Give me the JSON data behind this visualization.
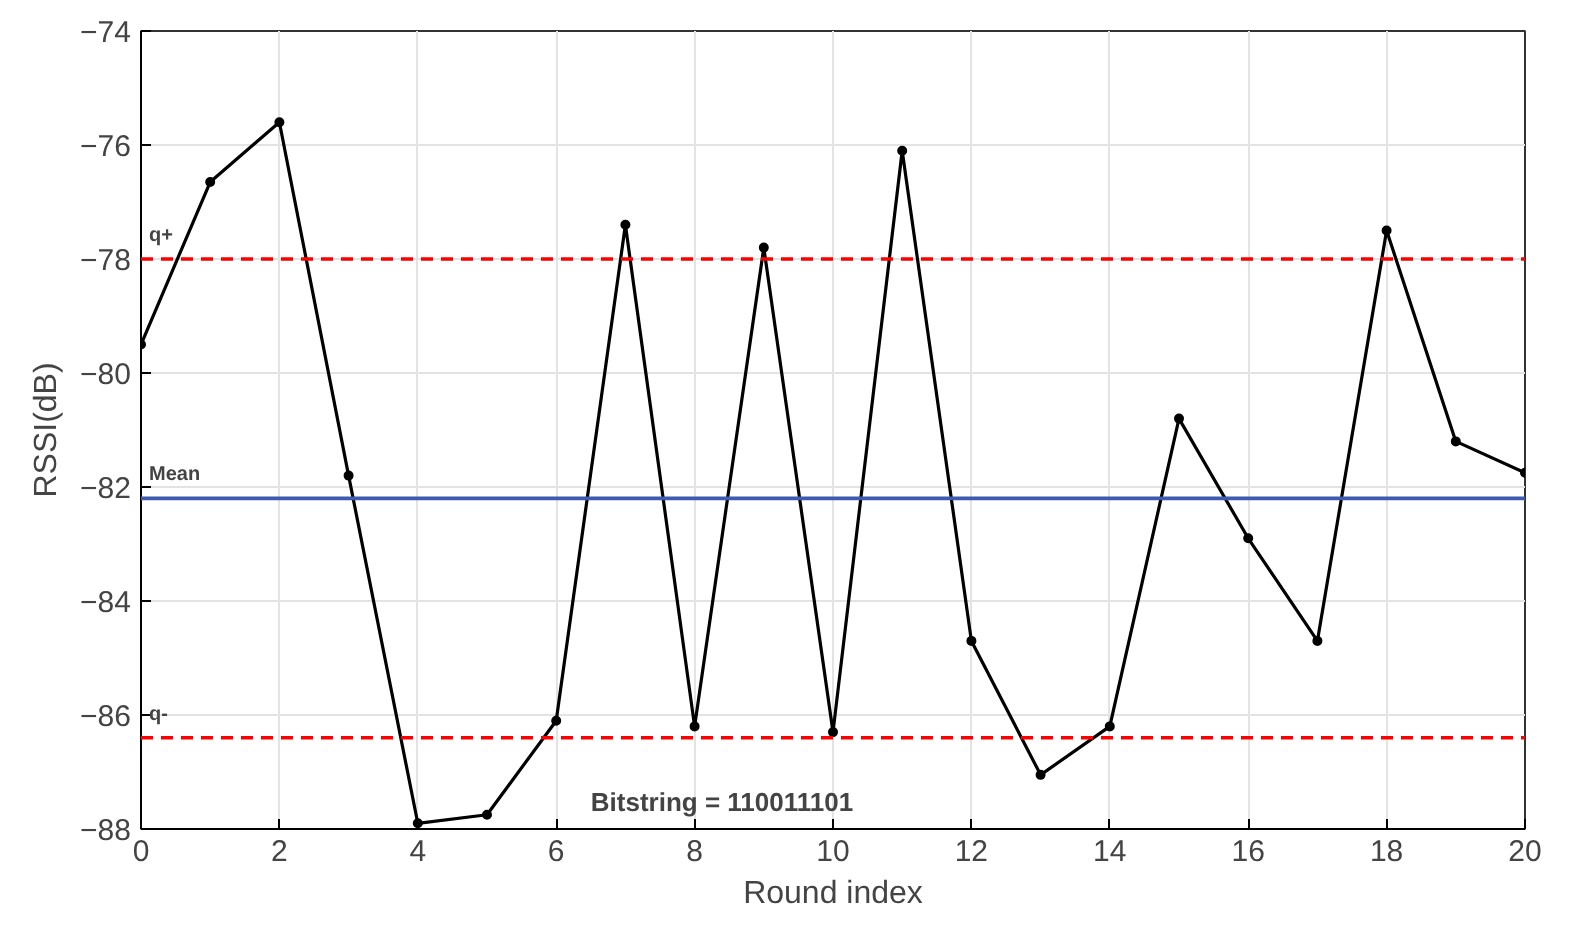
{
  "chart_data": {
    "type": "line",
    "xlabel": "Round index",
    "ylabel": "RSSI(dB)",
    "x": [
      0,
      1,
      2,
      3,
      4,
      5,
      6,
      7,
      8,
      9,
      10,
      11,
      12,
      13,
      14,
      15,
      16,
      17,
      18,
      19,
      20
    ],
    "series": [
      {
        "color": "#000000",
        "values": [
          -79.5,
          -76.65,
          -75.6,
          -81.8,
          -87.9,
          -87.75,
          -86.1,
          -77.4,
          -86.2,
          -77.8,
          -86.3,
          -76.1,
          -84.7,
          -87.05,
          -86.2,
          -80.8,
          -82.9,
          -84.7,
          -77.5,
          -81.2,
          -81.75
        ]
      }
    ],
    "xlim": [
      0,
      20
    ],
    "xticks": [
      0,
      2,
      4,
      6,
      8,
      10,
      12,
      14,
      16,
      18,
      20
    ],
    "ylim": [
      -88,
      -74
    ],
    "yticks": [
      -88,
      -86,
      -84,
      -82,
      -80,
      -78,
      -76,
      -74
    ],
    "ref_lines": [
      {
        "axis": "y",
        "value": -78,
        "label": "q+",
        "color": "#ff0000",
        "line_style": "dashed"
      },
      {
        "axis": "y",
        "value": -82.2,
        "label": "Mean",
        "color": "#3f5bb0",
        "line_style": "solid"
      },
      {
        "axis": "y",
        "value": -86.4,
        "label": "q-",
        "color": "#ff0000",
        "line_style": "dashed"
      }
    ],
    "annotations": [
      "Bitstring = 110011101"
    ],
    "grid": true,
    "marker": "circle",
    "line_style": "solid"
  }
}
